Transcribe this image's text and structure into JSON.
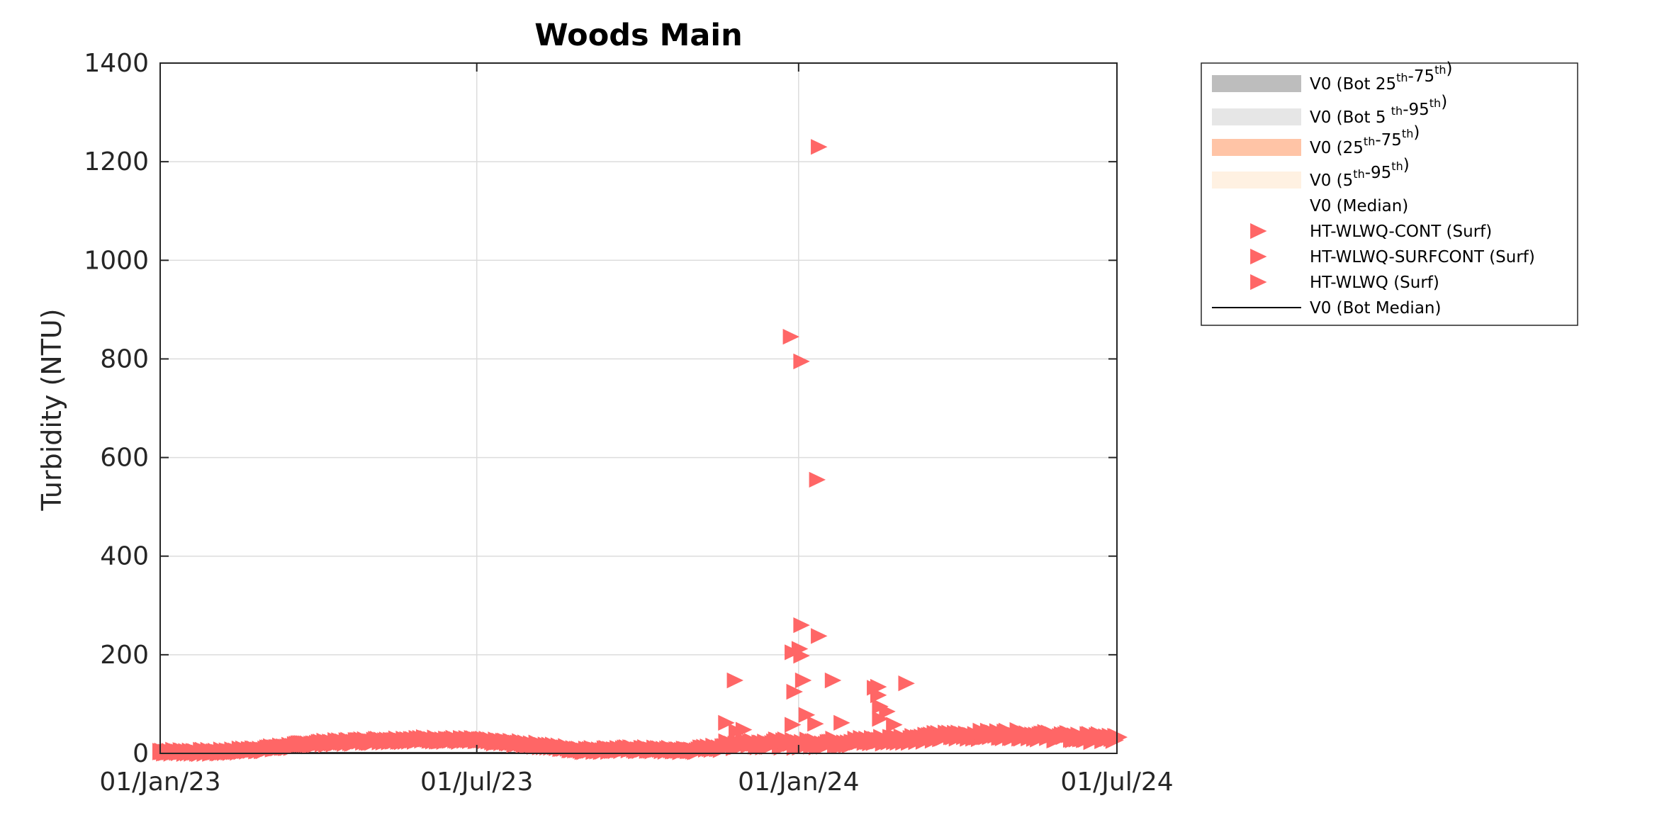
{
  "chart_data": {
    "type": "scatter",
    "title": "Woods Main",
    "xlabel": "",
    "ylabel": "Turbidity (NTU)",
    "xlim": [
      "2023-01-01",
      "2024-07-01"
    ],
    "ylim": [
      0,
      1400
    ],
    "x_ticks": [
      "01/Jan/23",
      "01/Jul/23",
      "01/Jan/24",
      "01/Jul/24"
    ],
    "y_ticks": [
      "0",
      "200",
      "400",
      "600",
      "800",
      "1000",
      "1200",
      "1400"
    ],
    "grid": true,
    "legend_position": "outside-right",
    "marker_color": "#ff6666",
    "legend": [
      {
        "main": "V0 (Bot 25",
        "sup1": "th",
        "mid": "-75",
        "sup2": "th",
        "end": ")",
        "swatch": "#bdbdbd",
        "kind": "patch"
      },
      {
        "main": "V0 (Bot 5 ",
        "sup1": "th",
        "mid": "-95",
        "sup2": "th",
        "end": ")",
        "swatch": "#e6e6e6",
        "kind": "patch"
      },
      {
        "main": "V0 (25",
        "sup1": "th",
        "mid": "-75",
        "sup2": "th",
        "end": ")",
        "swatch": "#ffc4a6",
        "kind": "patch"
      },
      {
        "main": "V0 (5",
        "sup1": "th",
        "mid": "-95",
        "sup2": "th",
        "end": ")",
        "swatch": "#fff1e2",
        "kind": "patch"
      },
      {
        "main": "V0 (Median)",
        "sup1": "",
        "mid": "",
        "sup2": "",
        "end": "",
        "swatch": "",
        "kind": "none"
      },
      {
        "main": "HT-WLWQ-CONT (Surf)",
        "sup1": "",
        "mid": "",
        "sup2": "",
        "end": "",
        "swatch": "#ff6666",
        "kind": "marker"
      },
      {
        "main": "HT-WLWQ-SURFCONT (Surf)",
        "sup1": "",
        "mid": "",
        "sup2": "",
        "end": "",
        "swatch": "#ff6666",
        "kind": "marker"
      },
      {
        "main": "HT-WLWQ (Surf)",
        "sup1": "",
        "mid": "",
        "sup2": "",
        "end": "",
        "swatch": "#ff6666",
        "kind": "marker"
      },
      {
        "main": "V0 (Bot Median)",
        "sup1": "",
        "mid": "",
        "sup2": "",
        "end": "",
        "swatch": "#000000",
        "kind": "line"
      }
    ],
    "baseline_series": {
      "name": "HT-WLWQ-CONT (Surf)",
      "note_points": [
        [
          "2023-01-01",
          3
        ],
        [
          "2023-02-01",
          2
        ],
        [
          "2023-03-01",
          8
        ],
        [
          "2023-04-01",
          20
        ],
        [
          "2023-05-01",
          25
        ],
        [
          "2023-06-01",
          28
        ],
        [
          "2023-07-01",
          26
        ],
        [
          "2023-08-01",
          18
        ],
        [
          "2023-09-01",
          6
        ],
        [
          "2023-10-01",
          8
        ],
        [
          "2023-11-01",
          5
        ],
        [
          "2023-12-01",
          20
        ],
        [
          "2024-01-01",
          18
        ],
        [
          "2024-02-01",
          22
        ],
        [
          "2024-03-01",
          28
        ],
        [
          "2024-04-01",
          35
        ],
        [
          "2024-05-01",
          38
        ],
        [
          "2024-06-01",
          32
        ],
        [
          "2024-07-01",
          28
        ]
      ]
    },
    "spikes": [
      [
        "2023-12-27",
        845
      ],
      [
        "2024-01-02",
        795
      ],
      [
        "2024-01-12",
        1230
      ],
      [
        "2024-01-11",
        555
      ],
      [
        "2024-01-02",
        260
      ],
      [
        "2024-01-01",
        212
      ],
      [
        "2024-01-02",
        198
      ],
      [
        "2023-12-28",
        205
      ],
      [
        "2024-01-12",
        238
      ],
      [
        "2023-11-25",
        148
      ],
      [
        "2024-01-03",
        148
      ],
      [
        "2024-01-20",
        148
      ],
      [
        "2023-12-29",
        125
      ],
      [
        "2024-02-13",
        133
      ],
      [
        "2024-02-15",
        135
      ],
      [
        "2024-02-15",
        118
      ],
      [
        "2024-02-16",
        95
      ],
      [
        "2024-02-20",
        85
      ],
      [
        "2024-03-02",
        142
      ],
      [
        "2024-01-05",
        78
      ],
      [
        "2024-01-10",
        60
      ],
      [
        "2024-01-25",
        62
      ],
      [
        "2023-11-20",
        62
      ],
      [
        "2023-11-26",
        45
      ],
      [
        "2023-11-30",
        48
      ],
      [
        "2023-12-28",
        58
      ],
      [
        "2024-02-24",
        58
      ],
      [
        "2024-02-16",
        70
      ]
    ]
  }
}
